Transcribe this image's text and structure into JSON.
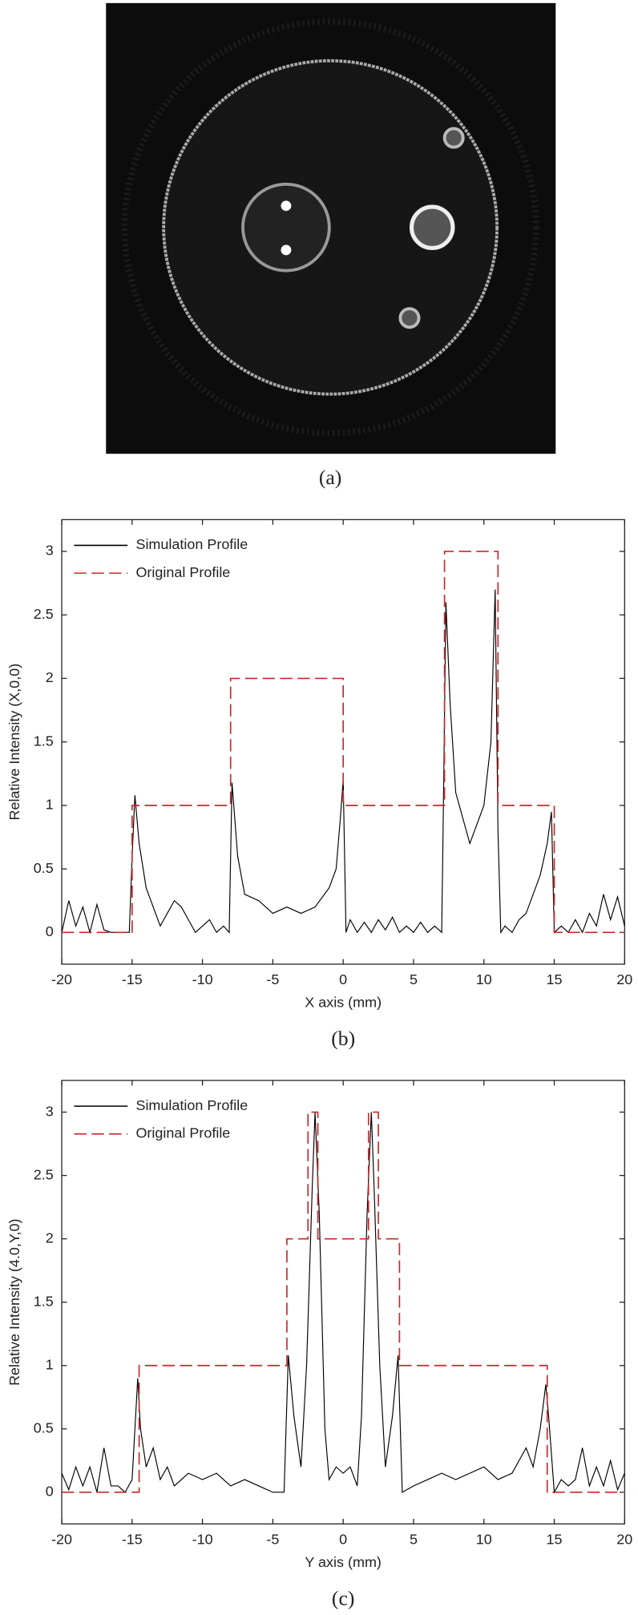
{
  "panel_a": {
    "caption": "(a)"
  },
  "chart_data": [
    {
      "type": "line",
      "caption": "(b)",
      "xlabel": "X axis (mm)",
      "ylabel": "Relative Intensity (X,0,0)",
      "xlim": [
        -20,
        20
      ],
      "xticks": [
        -20,
        -15,
        -10,
        -5,
        0,
        5,
        10,
        15,
        20
      ],
      "ylim": [
        -0.25,
        3.25
      ],
      "yticks": [
        0,
        0.5,
        1,
        1.5,
        2,
        2.5,
        3
      ],
      "legend": "upper left",
      "series": [
        {
          "name": "Simulation Profile",
          "color": "#000000",
          "dash": false,
          "x": [
            -20,
            -19.5,
            -19,
            -18.5,
            -18,
            -17.5,
            -17,
            -16.5,
            -16,
            -15.2,
            -15,
            -14.8,
            -14.5,
            -14,
            -13.5,
            -13,
            -12.5,
            -12,
            -11.5,
            -11,
            -10.5,
            -10,
            -9.5,
            -9,
            -8.5,
            -8.1,
            -7.9,
            -7.5,
            -7,
            -6,
            -5,
            -4,
            -3,
            -2,
            -1,
            -0.5,
            -0.2,
            0,
            0.2,
            0.5,
            1,
            1.5,
            2,
            2.5,
            3,
            3.5,
            4,
            4.5,
            5,
            5.5,
            6,
            6.5,
            7,
            7.1,
            7.3,
            7.6,
            8,
            8.5,
            9,
            9.5,
            10,
            10.5,
            10.8,
            11,
            11.2,
            11.5,
            12,
            12.5,
            13,
            13.5,
            14,
            14.5,
            14.8,
            15,
            15.5,
            16,
            16.5,
            17,
            17.5,
            18,
            18.5,
            19,
            19.5,
            20
          ],
          "values": [
            0,
            0.25,
            0.05,
            0.2,
            0,
            0.22,
            0.02,
            0,
            0,
            0,
            0.6,
            1.08,
            0.7,
            0.35,
            0.2,
            0.05,
            0.15,
            0.25,
            0.2,
            0.1,
            0,
            0.05,
            0.1,
            0,
            0.05,
            0,
            1.18,
            0.6,
            0.3,
            0.25,
            0.15,
            0.2,
            0.15,
            0.2,
            0.35,
            0.5,
            0.9,
            1.2,
            0,
            0.1,
            0,
            0.08,
            0,
            0.1,
            0.02,
            0.12,
            0,
            0.05,
            0,
            0.08,
            0,
            0.05,
            0,
            0.8,
            2.6,
            1.8,
            1.1,
            0.9,
            0.7,
            0.85,
            1.0,
            1.5,
            2.7,
            0.8,
            0,
            0.05,
            0,
            0.1,
            0.15,
            0.3,
            0.45,
            0.7,
            0.95,
            0,
            0.05,
            0,
            0.1,
            0,
            0.15,
            0.05,
            0.3,
            0.1,
            0.28,
            0.05
          ]
        },
        {
          "name": "Original Profile",
          "color": "#c8282d",
          "dash": true,
          "x": [
            -20,
            -15,
            -15,
            -8,
            -8,
            0,
            0,
            7.2,
            7.2,
            11,
            11,
            15,
            15,
            20
          ],
          "values": [
            0,
            0,
            1,
            1,
            2,
            2,
            1,
            1,
            3,
            3,
            1,
            1,
            0,
            0
          ]
        }
      ]
    },
    {
      "type": "line",
      "caption": "(c)",
      "xlabel": "Y axis (mm)",
      "ylabel": "Relative Intensity (4.0,Y,0)",
      "xlim": [
        -20,
        20
      ],
      "xticks": [
        -20,
        -15,
        -10,
        -5,
        0,
        5,
        10,
        15,
        20
      ],
      "ylim": [
        -0.25,
        3.25
      ],
      "yticks": [
        0,
        0.5,
        1,
        1.5,
        2,
        2.5,
        3
      ],
      "legend": "upper left",
      "series": [
        {
          "name": "Simulation Profile",
          "color": "#000000",
          "dash": false,
          "x": [
            -20,
            -19.5,
            -19,
            -18.5,
            -18,
            -17.5,
            -17,
            -16.5,
            -16,
            -15.5,
            -15,
            -14.6,
            -14.4,
            -14,
            -13.5,
            -13,
            -12.5,
            -12,
            -11,
            -10,
            -9,
            -8,
            -7,
            -6,
            -5,
            -4.2,
            -3.9,
            -3.5,
            -3,
            -2.6,
            -2.2,
            -2,
            -1.7,
            -1.3,
            -1,
            -0.5,
            0,
            0.5,
            1,
            1.3,
            1.7,
            2,
            2.2,
            2.6,
            3,
            3.5,
            3.9,
            4.2,
            5,
            6,
            7,
            8,
            9,
            10,
            11,
            12,
            13,
            13.5,
            14,
            14.4,
            14.6,
            15,
            15.5,
            16,
            16.5,
            17,
            17.5,
            18,
            18.5,
            19,
            19.5,
            20
          ],
          "values": [
            0.15,
            0.02,
            0.2,
            0.05,
            0.2,
            0,
            0.35,
            0.05,
            0.05,
            0,
            0.1,
            0.9,
            0.5,
            0.2,
            0.35,
            0.1,
            0.2,
            0.05,
            0.15,
            0.1,
            0.15,
            0.05,
            0.1,
            0.05,
            0,
            0,
            1.08,
            0.6,
            0.2,
            1.0,
            2.4,
            3.0,
            2.2,
            0.5,
            0.1,
            0.2,
            0.15,
            0.2,
            0.05,
            0.6,
            2.2,
            3.0,
            2.4,
            1.0,
            0.2,
            0.6,
            1.08,
            0,
            0.05,
            0.1,
            0.15,
            0.1,
            0.15,
            0.2,
            0.1,
            0.15,
            0.35,
            0.2,
            0.5,
            0.85,
            0.6,
            0,
            0.1,
            0.05,
            0.1,
            0.35,
            0.05,
            0.2,
            0.05,
            0.25,
            0.02,
            0.15
          ]
        },
        {
          "name": "Original Profile",
          "color": "#c8282d",
          "dash": true,
          "x": [
            -20,
            -14.5,
            -14.5,
            -4,
            -4,
            -2.5,
            -2.5,
            -1.8,
            -1.8,
            1.8,
            1.8,
            2.5,
            2.5,
            4,
            4,
            14.5,
            14.5,
            20
          ],
          "values": [
            0,
            0,
            1,
            1,
            2,
            2,
            3,
            3,
            2,
            2,
            3,
            3,
            2,
            2,
            1,
            1,
            0,
            0
          ]
        }
      ]
    }
  ]
}
